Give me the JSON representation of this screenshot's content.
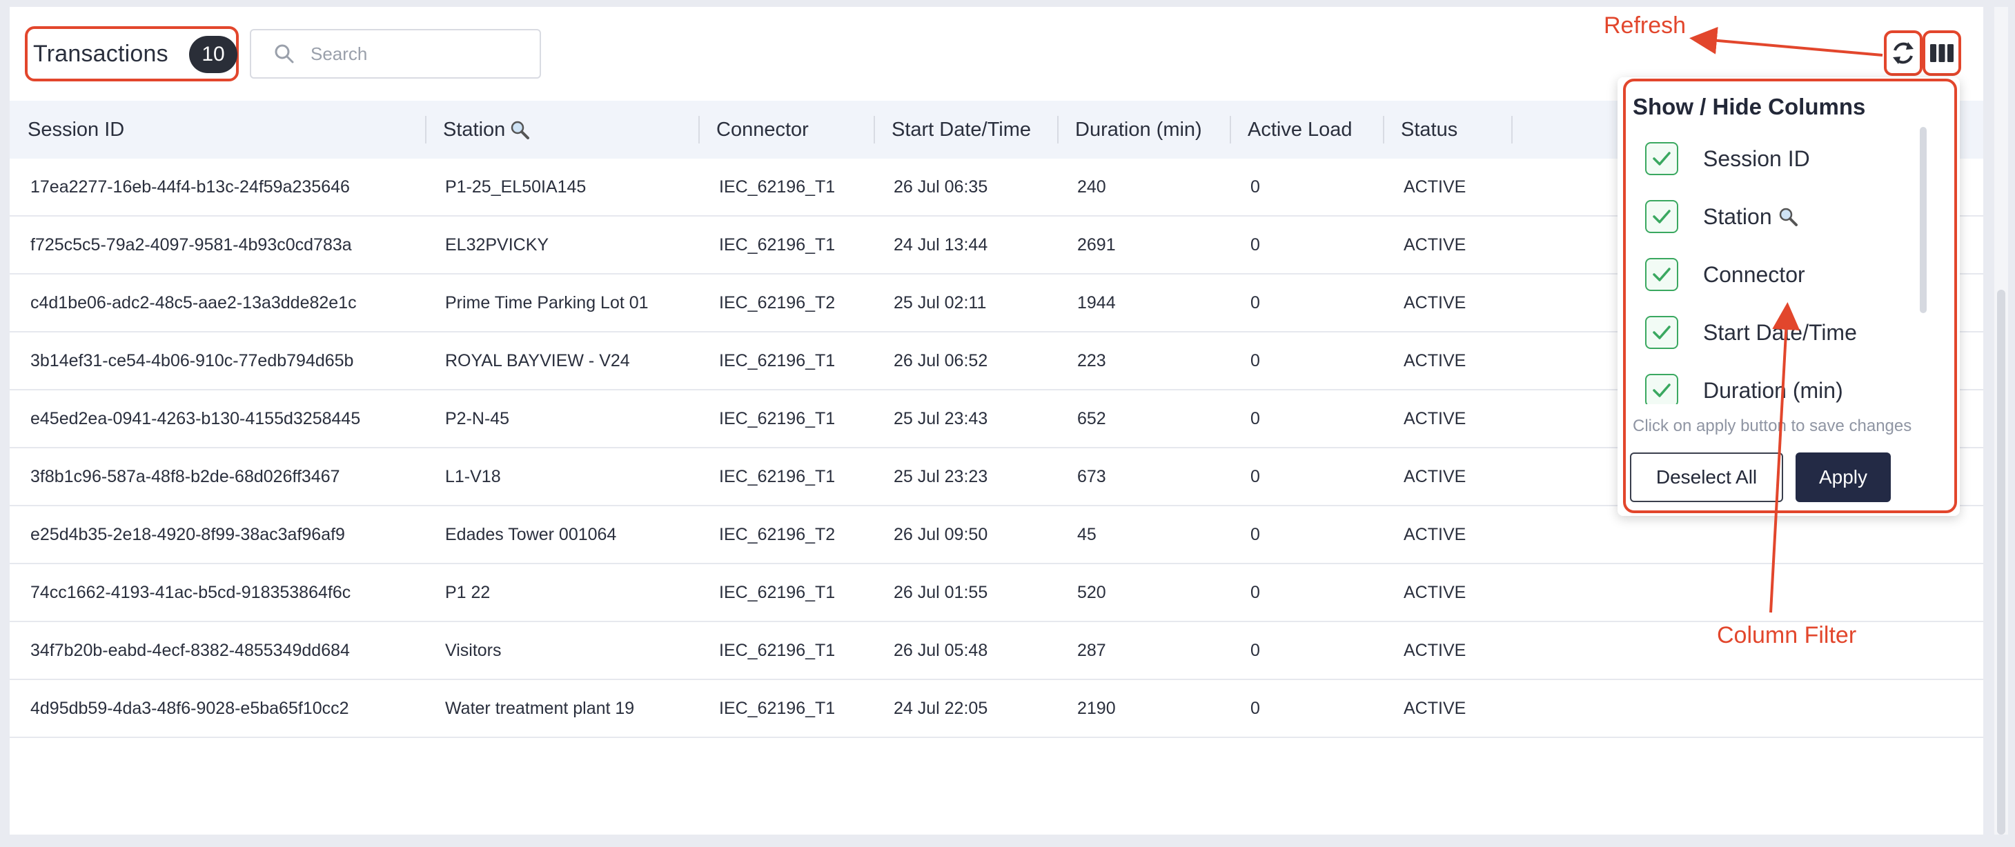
{
  "header": {
    "title": "Transactions",
    "count": "10",
    "search_placeholder": "Search"
  },
  "table": {
    "columns": [
      "Session ID",
      "Station",
      "Connector",
      "Start Date/Time",
      "Duration (min)",
      "Active Load",
      "Status"
    ],
    "rows": [
      [
        "17ea2277-16eb-44f4-b13c-24f59a235646",
        "P1-25_EL50IA145",
        "IEC_62196_T1",
        "26 Jul 06:35",
        "240",
        "0",
        "ACTIVE"
      ],
      [
        "f725c5c5-79a2-4097-9581-4b93c0cd783a",
        "EL32PVICKY",
        "IEC_62196_T1",
        "24 Jul 13:44",
        "2691",
        "0",
        "ACTIVE"
      ],
      [
        "c4d1be06-adc2-48c5-aae2-13a3dde82e1c",
        "Prime Time Parking Lot 01",
        "IEC_62196_T2",
        "25 Jul 02:11",
        "1944",
        "0",
        "ACTIVE"
      ],
      [
        "3b14ef31-ce54-4b06-910c-77edb794d65b",
        "ROYAL BAYVIEW - V24",
        "IEC_62196_T1",
        "26 Jul 06:52",
        "223",
        "0",
        "ACTIVE"
      ],
      [
        "e45ed2ea-0941-4263-b130-4155d3258445",
        "P2-N-45",
        "IEC_62196_T1",
        "25 Jul 23:43",
        "652",
        "0",
        "ACTIVE"
      ],
      [
        "3f8b1c96-587a-48f8-b2de-68d026ff3467",
        "L1-V18",
        "IEC_62196_T1",
        "25 Jul 23:23",
        "673",
        "0",
        "ACTIVE"
      ],
      [
        "e25d4b35-2e18-4920-8f99-38ac3af96af9",
        "Edades Tower 001064",
        "IEC_62196_T2",
        "26 Jul 09:50",
        "45",
        "0",
        "ACTIVE"
      ],
      [
        "74cc1662-4193-41ac-b5cd-918353864f6c",
        "P1 22",
        "IEC_62196_T1",
        "26 Jul 01:55",
        "520",
        "0",
        "ACTIVE"
      ],
      [
        "34f7b20b-eabd-4ecf-8382-4855349dd684",
        "Visitors",
        "IEC_62196_T1",
        "26 Jul 05:48",
        "287",
        "0",
        "ACTIVE"
      ],
      [
        "4d95db59-4da3-48f6-9028-e5ba65f10cc2",
        "Water treatment plant 19",
        "IEC_62196_T1",
        "24 Jul 22:05",
        "2190",
        "0",
        "ACTIVE"
      ]
    ]
  },
  "column_popup": {
    "title": "Show / Hide Columns",
    "items": [
      "Session ID",
      "Station",
      "Connector",
      "Start Date/Time",
      "Duration (min)"
    ],
    "hint": "Click on apply button to save changes",
    "deselect_label": "Deselect All",
    "apply_label": "Apply"
  },
  "annotations": {
    "refresh": "Refresh",
    "column_filter": "Column Filter"
  },
  "colors": {
    "annotation": "#e2462c",
    "check": "#3aa860",
    "apply_bg": "#232a45",
    "header_bg": "#f1f4fa"
  },
  "icons": {
    "search": "search-icon",
    "station_search": "magnifier-icon",
    "refresh": "refresh-icon",
    "columns": "columns-icon",
    "check": "checkmark-icon"
  }
}
